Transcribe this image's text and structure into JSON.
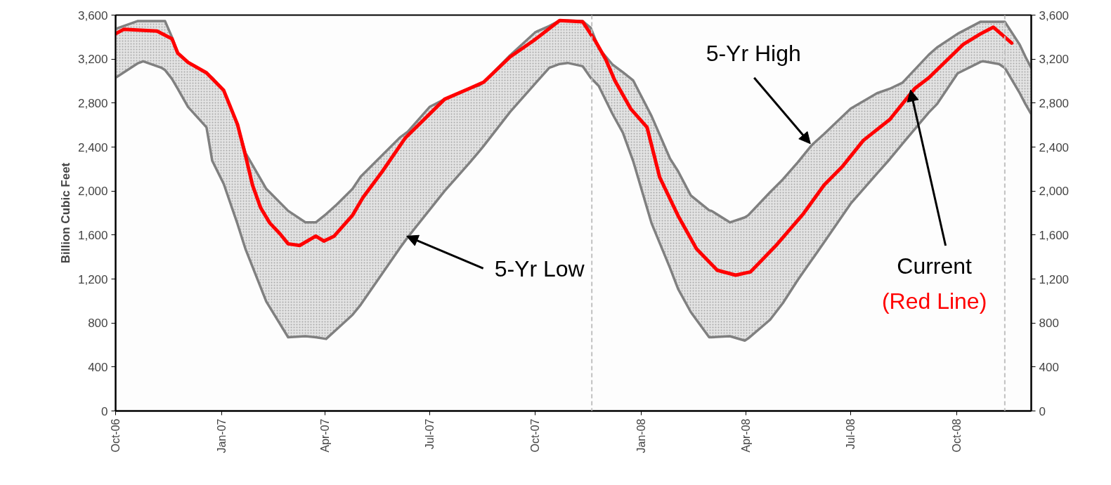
{
  "chart_data": {
    "type": "line",
    "ylabel": "Billion Cubic Feet",
    "xlim": [
      "2006-10-01",
      "2008-12-05"
    ],
    "xticks": [
      {
        "value": "2006-10-01",
        "label": "Oct-06"
      },
      {
        "value": "2007-01-01",
        "label": "Jan-07"
      },
      {
        "value": "2007-04-01",
        "label": "Apr-07"
      },
      {
        "value": "2007-07-01",
        "label": "Jul-07"
      },
      {
        "value": "2007-10-01",
        "label": "Oct-07"
      },
      {
        "value": "2008-01-01",
        "label": "Jan-08"
      },
      {
        "value": "2008-04-01",
        "label": "Apr-08"
      },
      {
        "value": "2008-07-01",
        "label": "Jul-08"
      },
      {
        "value": "2008-10-01",
        "label": "Oct-08"
      }
    ],
    "ylim": [
      0,
      3600
    ],
    "yticks": [
      0,
      400,
      800,
      {
        "value": 1200,
        "label": "1,200"
      },
      {
        "value": 1600,
        "label": "1,600"
      },
      {
        "value": 2000,
        "label": "2,000"
      },
      {
        "value": 2400,
        "label": "2,400"
      },
      {
        "value": 2800,
        "label": "2,800"
      },
      {
        "value": 3200,
        "label": "3,200"
      },
      {
        "value": 3600,
        "label": "3,600"
      }
    ],
    "y2lim": [
      0,
      3600
    ],
    "y2ticks": [
      0,
      400,
      800,
      {
        "value": 1200,
        "label": "1,200"
      },
      {
        "value": 1600,
        "label": "1,600"
      },
      {
        "value": 2000,
        "label": "2,000"
      },
      {
        "value": 2400,
        "label": "2,400"
      },
      {
        "value": 2800,
        "label": "2,800"
      },
      {
        "value": 3200,
        "label": "3,200"
      },
      {
        "value": 3600,
        "label": "3,600"
      }
    ],
    "series": [
      {
        "color": "#808080",
        "x": [
          "2006-10-01",
          "2006-10-20",
          "2006-10-25",
          "2006-11-10",
          "2006-11-13",
          "2006-11-19",
          "2006-11-24",
          "2006-12-03",
          "2006-12-19",
          "2006-12-24",
          "2007-01-03",
          "2007-01-15",
          "2007-01-22",
          "2007-02-09",
          "2007-02-28",
          "2007-03-15",
          "2007-03-24",
          "2007-04-02",
          "2007-04-11",
          "2007-04-25",
          "2007-05-02",
          "2007-06-05",
          "2007-06-12",
          "2007-07-01",
          "2007-07-14",
          "2007-08-05",
          "2007-08-13",
          "2007-08-17",
          "2007-09-09",
          "2007-10-01",
          "2007-10-13",
          "2007-10-22",
          "2007-10-29",
          "2007-11-11",
          "2007-11-18",
          "2007-11-25",
          "2007-12-07",
          "2007-12-16",
          "2007-12-25",
          "2008-01-10",
          "2008-01-26",
          "2008-02-02",
          "2008-02-13",
          "2008-02-29",
          "2008-03-02",
          "2008-03-18",
          "2008-03-31",
          "2008-04-03",
          "2008-04-22",
          "2008-05-03",
          "2008-05-16",
          "2008-05-28",
          "2008-05-30",
          "2008-06-08",
          "2008-07-01",
          "2008-07-24",
          "2008-08-04",
          "2008-08-15",
          "2008-09-07",
          "2008-09-14",
          "2008-10-02",
          "2008-10-22",
          "2008-10-24",
          "2008-11-07",
          "2008-11-12",
          "2008-11-25",
          "2008-11-30",
          "2008-12-05"
        ],
        "values": [
          3475,
          3545,
          3545,
          3545,
          3545,
          3400,
          3255,
          3170,
          3075,
          3030,
          2915,
          2605,
          2345,
          2020,
          1820,
          1715,
          1715,
          1790,
          1875,
          2020,
          2130,
          2485,
          2540,
          2765,
          2835,
          2935,
          2960,
          2990,
          3235,
          3445,
          3500,
          3550,
          3550,
          3545,
          3485,
          3300,
          3150,
          3080,
          3005,
          2680,
          2295,
          2180,
          1960,
          1825,
          1820,
          1715,
          1760,
          1780,
          1990,
          2105,
          2260,
          2415,
          2435,
          2520,
          2750,
          2890,
          2930,
          2985,
          3240,
          3305,
          3430,
          3540,
          3540,
          3540,
          3540,
          3330,
          3220,
          3120
        ],
        "upper": [
          3475,
          3545,
          3545,
          3545,
          3545,
          3400,
          3255,
          3170,
          3075,
          3030,
          2915,
          2605,
          2345,
          2020,
          1820,
          1715,
          1715,
          1790,
          1875,
          2020,
          2130,
          2485,
          2540,
          2765,
          2835,
          2935,
          2960,
          2990,
          3235,
          3445,
          3500,
          3550,
          3550,
          3545,
          3485,
          3300,
          3150,
          3080,
          3005,
          2680,
          2295,
          2180,
          1960,
          1825,
          1820,
          1715,
          1760,
          1780,
          1990,
          2105,
          2260,
          2415,
          2435,
          2520,
          2750,
          2890,
          2930,
          2985,
          3240,
          3305,
          3430,
          3540,
          3540,
          3540,
          3540,
          3330,
          3220,
          3120
        ],
        "lower": [
          3030,
          3160,
          3180,
          3120,
          3100,
          3020,
          2930,
          2765,
          2580,
          2275,
          2065,
          1700,
          1470,
          995,
          670,
          680,
          670,
          655,
          740,
          875,
          965,
          1480,
          1580,
          1830,
          2000,
          2260,
          2360,
          2410,
          2720,
          2980,
          3120,
          3155,
          3165,
          3135,
          3030,
          2955,
          2700,
          2530,
          2270,
          1705,
          1300,
          1110,
          900,
          670,
          670,
          680,
          640,
          660,
          830,
          980,
          1190,
          1370,
          1400,
          1535,
          1885,
          2160,
          2290,
          2430,
          2715,
          2790,
          3070,
          3175,
          3180,
          3155,
          3120,
          2890,
          2790,
          2700
        ]
      },
      {
        "color": "#808080",
        "x": [
          "2006-10-01",
          "2006-10-20",
          "2006-10-25",
          "2006-11-10",
          "2006-11-13",
          "2006-11-19",
          "2006-11-24",
          "2006-12-03",
          "2006-12-19",
          "2006-12-24",
          "2007-01-03",
          "2007-01-15",
          "2007-01-22",
          "2007-02-09",
          "2007-02-28",
          "2007-03-15",
          "2007-03-24",
          "2007-04-02",
          "2007-04-11",
          "2007-04-25",
          "2007-05-02",
          "2007-06-05",
          "2007-06-12",
          "2007-07-01",
          "2007-07-14",
          "2007-08-05",
          "2007-08-13",
          "2007-08-17",
          "2007-09-09",
          "2007-10-01",
          "2007-10-13",
          "2007-10-22",
          "2007-10-29",
          "2007-11-11",
          "2007-11-18",
          "2007-11-25",
          "2007-12-07",
          "2007-12-16",
          "2007-12-25",
          "2008-01-10",
          "2008-01-26",
          "2008-02-02",
          "2008-02-13",
          "2008-02-29",
          "2008-03-02",
          "2008-03-18",
          "2008-03-31",
          "2008-04-03",
          "2008-04-22",
          "2008-05-03",
          "2008-05-16",
          "2008-05-28",
          "2008-05-30",
          "2008-06-08",
          "2008-07-01",
          "2008-07-24",
          "2008-08-04",
          "2008-08-15",
          "2008-09-07",
          "2008-09-14",
          "2008-10-02",
          "2008-10-22",
          "2008-10-24",
          "2008-11-07",
          "2008-11-12",
          "2008-11-25",
          "2008-11-30",
          "2008-12-05"
        ],
        "values": [
          3030,
          3160,
          3180,
          3120,
          3100,
          3020,
          2930,
          2765,
          2580,
          2275,
          2065,
          1700,
          1470,
          995,
          670,
          680,
          670,
          655,
          740,
          875,
          965,
          1480,
          1580,
          1830,
          2000,
          2260,
          2360,
          2410,
          2720,
          2980,
          3120,
          3155,
          3165,
          3135,
          3030,
          2955,
          2700,
          2530,
          2270,
          1705,
          1300,
          1110,
          900,
          670,
          670,
          680,
          640,
          660,
          830,
          980,
          1190,
          1370,
          1400,
          1535,
          1885,
          2160,
          2290,
          2430,
          2715,
          2790,
          3070,
          3175,
          3180,
          3155,
          3120,
          2890,
          2790,
          2700
        ]
      },
      {
        "color": "#ff0000",
        "x": [
          "2006-10-01",
          "2006-10-08",
          "2006-11-06",
          "2006-11-19",
          "2006-11-24",
          "2006-12-03",
          "2006-12-19",
          "2007-01-03",
          "2007-01-15",
          "2007-01-22",
          "2007-01-28",
          "2007-02-04",
          "2007-02-12",
          "2007-02-21",
          "2007-02-28",
          "2007-03-10",
          "2007-03-24",
          "2007-03-31",
          "2007-04-09",
          "2007-04-25",
          "2007-05-04",
          "2007-05-21",
          "2007-06-10",
          "2007-07-14",
          "2007-08-05",
          "2007-08-17",
          "2007-09-09",
          "2007-09-29",
          "2007-10-22",
          "2007-11-11",
          "2007-11-22",
          "2007-12-01",
          "2007-12-09",
          "2007-12-23",
          "2008-01-06",
          "2008-01-17",
          "2008-02-02",
          "2008-02-18",
          "2008-03-07",
          "2008-03-23",
          "2008-04-05",
          "2008-04-28",
          "2008-05-21",
          "2008-06-08",
          "2008-06-24",
          "2008-07-12",
          "2008-08-04",
          "2008-08-26",
          "2008-09-07",
          "2008-10-07",
          "2008-10-22",
          "2008-11-02",
          "2008-11-18"
        ],
        "values": [
          3430,
          3470,
          3455,
          3385,
          3255,
          3170,
          3075,
          2915,
          2605,
          2320,
          2055,
          1850,
          1710,
          1610,
          1520,
          1505,
          1590,
          1545,
          1590,
          1780,
          1940,
          2180,
          2485,
          2835,
          2935,
          2990,
          3220,
          3365,
          3550,
          3540,
          3365,
          3200,
          3005,
          2745,
          2580,
          2125,
          1775,
          1475,
          1280,
          1235,
          1265,
          1515,
          1795,
          2055,
          2225,
          2460,
          2650,
          2935,
          3030,
          3335,
          3430,
          3490,
          3345
        ]
      }
    ],
    "ref_lines": [
      {
        "axis": "x",
        "value": "2007-11-19",
        "color": "#c0c0c0",
        "line_style": "dashed"
      },
      {
        "axis": "x",
        "value": "2008-11-12",
        "color": "#c0c0c0",
        "line_style": "dashed"
      }
    ],
    "annotations": [
      {
        "text": "5-Yr Low",
        "x": "2007-06-11",
        "y": 1590
      },
      {
        "text": "5-Yr High",
        "x": "2008-05-27",
        "y": 2430
      },
      {
        "text": "Current",
        "x": "2008-08-22",
        "y": 2920
      },
      "(Red Line)"
    ]
  }
}
